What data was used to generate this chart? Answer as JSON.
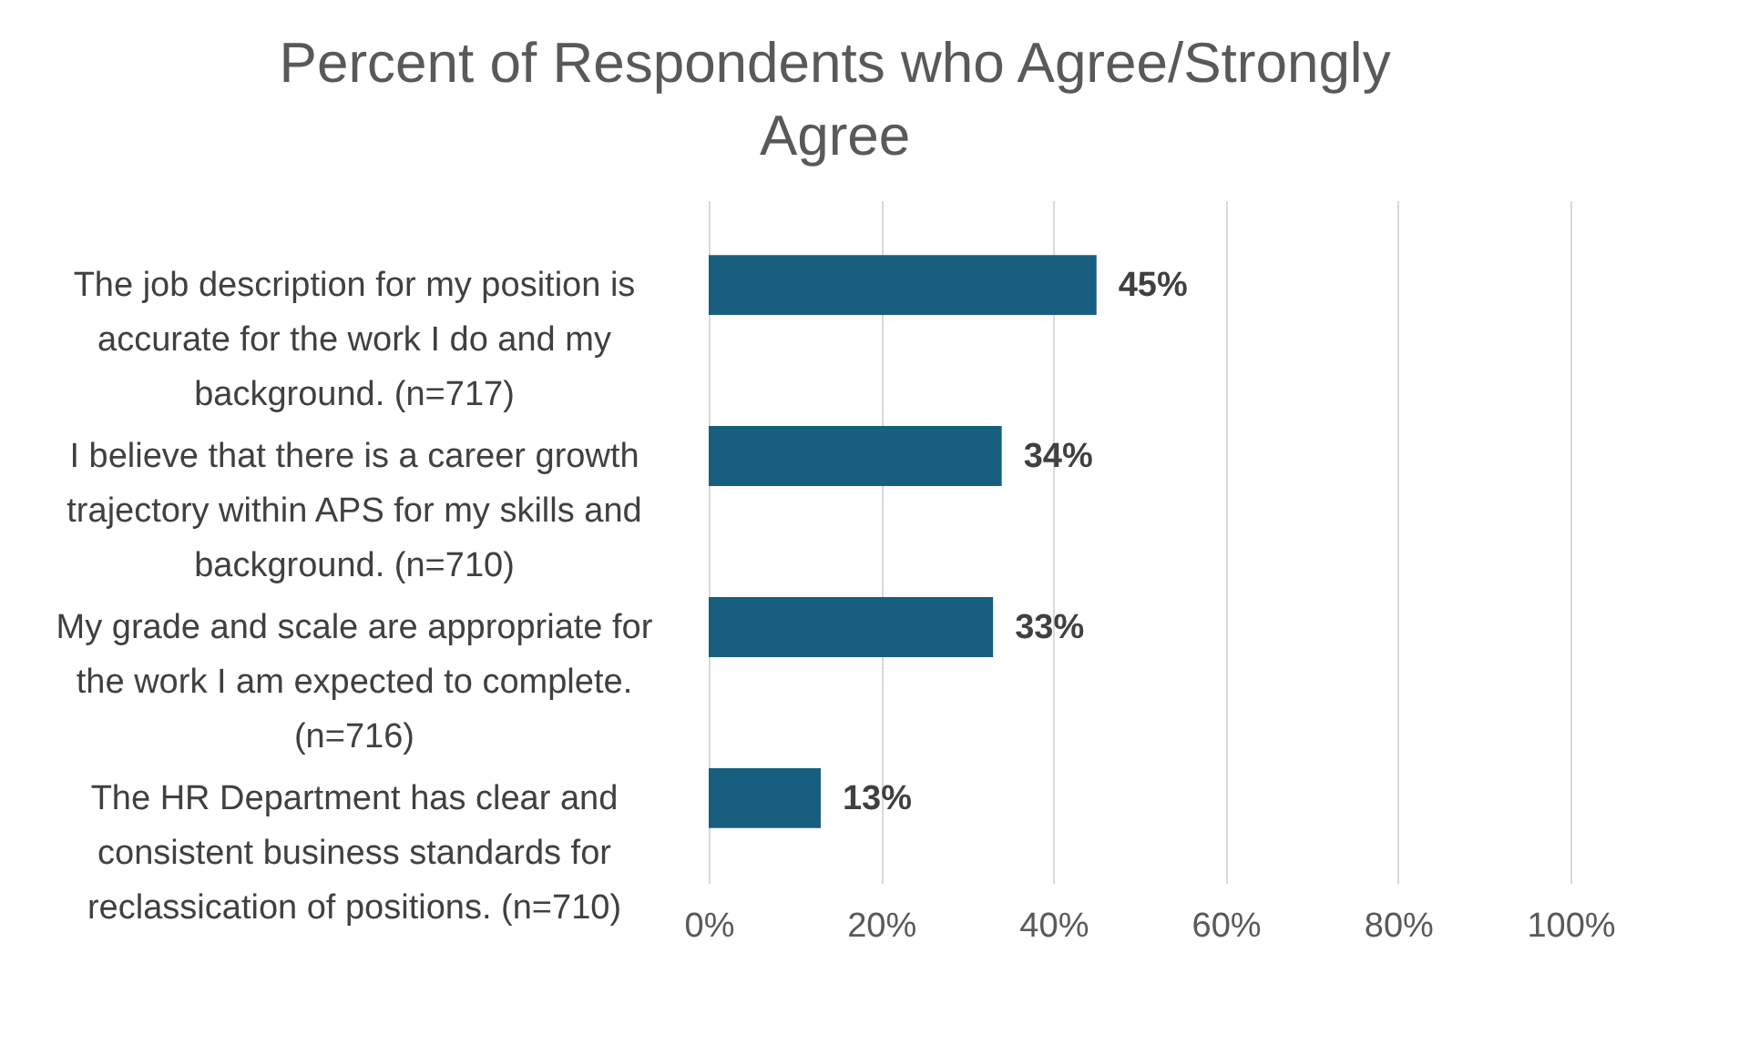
{
  "chart_data": {
    "type": "bar",
    "orientation": "horizontal",
    "title": "Percent of Respondents who Agree/Strongly Agree",
    "categories": [
      "The job description for my position is accurate for the work I do and my background. (n=717)",
      "I believe that there is a career growth trajectory within APS for my skills and background. (n=710)",
      "My grade and scale are appropriate for the work I am expected to complete. (n=716)",
      "The HR Department has clear and consistent business standards for reclassication of positions. (n=710)"
    ],
    "values": [
      45,
      34,
      33,
      13
    ],
    "color": "#175e7f",
    "value_labels": [
      "45%",
      "34%",
      "33%",
      "13%"
    ],
    "xlim": [
      0,
      100
    ],
    "xticks": [
      {
        "value": 0,
        "label": "0%"
      },
      {
        "value": 20,
        "label": "20%"
      },
      {
        "value": 40,
        "label": "40%"
      },
      {
        "value": 60,
        "label": "60%"
      },
      {
        "value": 80,
        "label": "80%"
      },
      {
        "value": 100,
        "label": "100%"
      }
    ],
    "grid": "x"
  }
}
